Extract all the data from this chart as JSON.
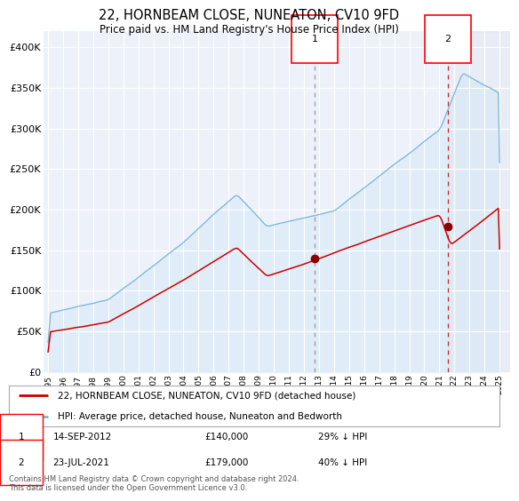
{
  "title": "22, HORNBEAM CLOSE, NUNEATON, CV10 9FD",
  "subtitle": "Price paid vs. HM Land Registry's House Price Index (HPI)",
  "ylabel_ticks": [
    "£0",
    "£50K",
    "£100K",
    "£150K",
    "£200K",
    "£250K",
    "£300K",
    "£350K",
    "£400K"
  ],
  "ytick_vals": [
    0,
    50000,
    100000,
    150000,
    200000,
    250000,
    300000,
    350000,
    400000
  ],
  "ylim": [
    0,
    420000
  ],
  "xlim_start": 1994.7,
  "xlim_end": 2025.7,
  "event1_date": 2012.708,
  "event1_price": 140000,
  "event1_label": "1",
  "event2_date": 2021.556,
  "event2_price": 179000,
  "event2_label": "2",
  "hpi_line_color": "#7ab5d8",
  "hpi_fill_color": "#d4e8f5",
  "price_line_color": "#cc0000",
  "event_dot_color": "#8b0000",
  "vline1_color": "#888888",
  "vline2_color": "#cc0000",
  "legend_label1": "22, HORNBEAM CLOSE, NUNEATON, CV10 9FD (detached house)",
  "legend_label2": "HPI: Average price, detached house, Nuneaton and Bedworth",
  "footnote": "Contains HM Land Registry data © Crown copyright and database right 2024.\nThis data is licensed under the Open Government Licence v3.0.",
  "background_color": "#ffffff",
  "plot_bg_color": "#edf2fa",
  "grid_color": "#ffffff",
  "xticks": [
    1995,
    1996,
    1997,
    1998,
    1999,
    2000,
    2001,
    2002,
    2003,
    2004,
    2005,
    2006,
    2007,
    2008,
    2009,
    2010,
    2011,
    2012,
    2013,
    2014,
    2015,
    2016,
    2017,
    2018,
    2019,
    2020,
    2021,
    2022,
    2023,
    2024,
    2025
  ]
}
